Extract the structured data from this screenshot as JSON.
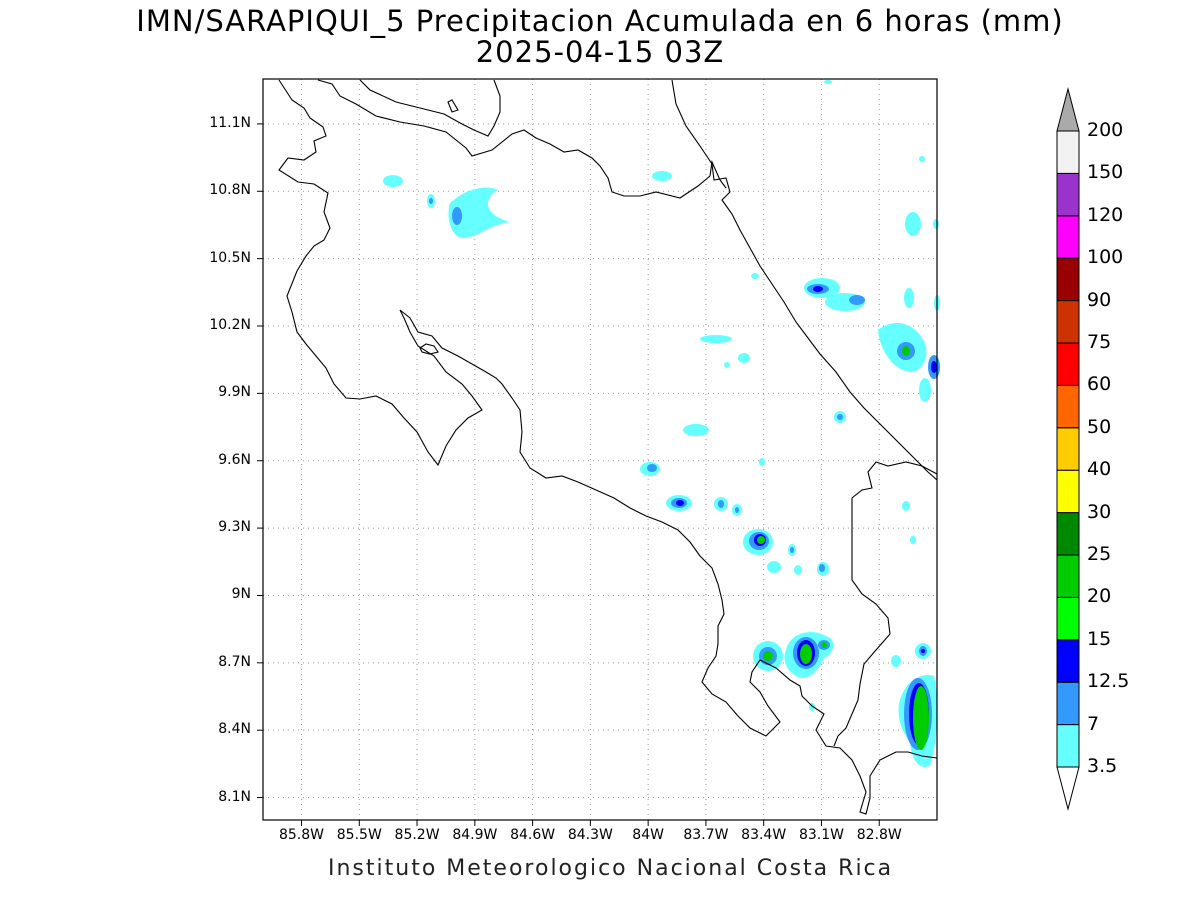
{
  "title_line1": "IMN/SARAPIQUI_5 Precipitacion Acumulada en 6 horas (mm)",
  "title_line2": "2025-04-15 03Z",
  "footer": "Instituto Meteorologico Nacional Costa Rica",
  "map": {
    "lon_range": [
      -86.0,
      -82.5
    ],
    "lat_range": [
      8.0,
      11.3
    ],
    "lon_ticks": [
      "85.8W",
      "85.5W",
      "85.2W",
      "84.9W",
      "84.6W",
      "84.3W",
      "84W",
      "83.7W",
      "83.4W",
      "83.1W",
      "82.8W"
    ],
    "lat_ticks": [
      "11.1N",
      "10.8N",
      "10.5N",
      "10.2N",
      "9.9N",
      "9.6N",
      "9.3N",
      "9N",
      "8.7N",
      "8.4N",
      "8.1N"
    ],
    "grid": "dotted",
    "coastline_color": "#000000"
  },
  "colorbar": {
    "labels": [
      "3.5",
      "7",
      "12.5",
      "15",
      "20",
      "25",
      "30",
      "40",
      "50",
      "60",
      "75",
      "90",
      "100",
      "120",
      "150",
      "200"
    ],
    "colors": [
      "#ffffff",
      "#66ffff",
      "#3399ff",
      "#0000ff",
      "#00ff00",
      "#00cc00",
      "#008800",
      "#ffff00",
      "#ffcc00",
      "#ff6600",
      "#ff0000",
      "#cc3300",
      "#990000",
      "#ff00ff",
      "#9933cc",
      "#f2f2f2",
      "#aaaaaa"
    ]
  }
}
